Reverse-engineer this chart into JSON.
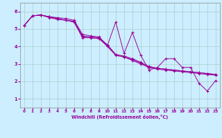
{
  "xlabel": "Windchill (Refroidissement éolien,°C)",
  "line_color": "#990099",
  "bg_color": "#cceeff",
  "grid_color": "#aacccc",
  "xlim": [
    -0.5,
    23.5
  ],
  "ylim": [
    0.5,
    6.5
  ],
  "yticks": [
    1,
    2,
    3,
    4,
    5,
    6
  ],
  "xticks": [
    0,
    1,
    2,
    3,
    4,
    5,
    6,
    7,
    8,
    9,
    10,
    11,
    12,
    13,
    14,
    15,
    16,
    17,
    18,
    19,
    20,
    21,
    22,
    23
  ],
  "series1": [
    [
      0,
      5.2
    ],
    [
      1,
      5.75
    ],
    [
      2,
      5.8
    ],
    [
      3,
      5.7
    ],
    [
      4,
      5.65
    ],
    [
      5,
      5.6
    ],
    [
      6,
      5.5
    ],
    [
      7,
      4.7
    ],
    [
      8,
      4.6
    ],
    [
      9,
      4.55
    ],
    [
      10,
      4.05
    ],
    [
      11,
      5.4
    ],
    [
      12,
      3.6
    ],
    [
      13,
      4.8
    ],
    [
      14,
      3.5
    ],
    [
      15,
      2.65
    ],
    [
      16,
      2.8
    ],
    [
      17,
      3.3
    ],
    [
      18,
      3.3
    ],
    [
      19,
      2.8
    ],
    [
      20,
      2.8
    ],
    [
      21,
      1.9
    ],
    [
      22,
      1.45
    ],
    [
      23,
      2.05
    ]
  ],
  "series2": [
    [
      0,
      5.2
    ],
    [
      1,
      5.75
    ],
    [
      2,
      5.8
    ],
    [
      3,
      5.7
    ],
    [
      4,
      5.6
    ],
    [
      5,
      5.5
    ],
    [
      6,
      5.45
    ],
    [
      7,
      4.6
    ],
    [
      8,
      4.55
    ],
    [
      9,
      4.5
    ],
    [
      10,
      4.1
    ],
    [
      11,
      3.55
    ],
    [
      12,
      3.45
    ],
    [
      13,
      3.3
    ],
    [
      14,
      3.1
    ],
    [
      15,
      2.85
    ],
    [
      16,
      2.75
    ],
    [
      17,
      2.7
    ],
    [
      18,
      2.65
    ],
    [
      19,
      2.6
    ],
    [
      20,
      2.55
    ],
    [
      21,
      2.5
    ],
    [
      22,
      2.45
    ],
    [
      23,
      2.4
    ]
  ],
  "series3": [
    [
      0,
      5.2
    ],
    [
      1,
      5.75
    ],
    [
      2,
      5.8
    ],
    [
      3,
      5.65
    ],
    [
      4,
      5.55
    ],
    [
      5,
      5.5
    ],
    [
      6,
      5.4
    ],
    [
      7,
      4.5
    ],
    [
      8,
      4.5
    ],
    [
      9,
      4.45
    ],
    [
      10,
      4.05
    ],
    [
      11,
      3.5
    ],
    [
      12,
      3.4
    ],
    [
      13,
      3.25
    ],
    [
      14,
      3.05
    ],
    [
      15,
      2.85
    ],
    [
      16,
      2.75
    ],
    [
      17,
      2.7
    ],
    [
      18,
      2.65
    ],
    [
      19,
      2.6
    ],
    [
      20,
      2.55
    ],
    [
      21,
      2.5
    ],
    [
      22,
      2.45
    ],
    [
      23,
      2.4
    ]
  ],
  "series4": [
    [
      0,
      5.2
    ],
    [
      1,
      5.75
    ],
    [
      2,
      5.8
    ],
    [
      3,
      5.7
    ],
    [
      4,
      5.6
    ],
    [
      5,
      5.5
    ],
    [
      6,
      5.4
    ],
    [
      7,
      4.55
    ],
    [
      8,
      4.5
    ],
    [
      9,
      4.45
    ],
    [
      10,
      4.0
    ],
    [
      11,
      3.5
    ],
    [
      12,
      3.4
    ],
    [
      13,
      3.2
    ],
    [
      14,
      3.0
    ],
    [
      15,
      2.8
    ],
    [
      16,
      2.7
    ],
    [
      17,
      2.65
    ],
    [
      18,
      2.6
    ],
    [
      19,
      2.55
    ],
    [
      20,
      2.5
    ],
    [
      21,
      2.45
    ],
    [
      22,
      2.4
    ],
    [
      23,
      2.35
    ]
  ]
}
